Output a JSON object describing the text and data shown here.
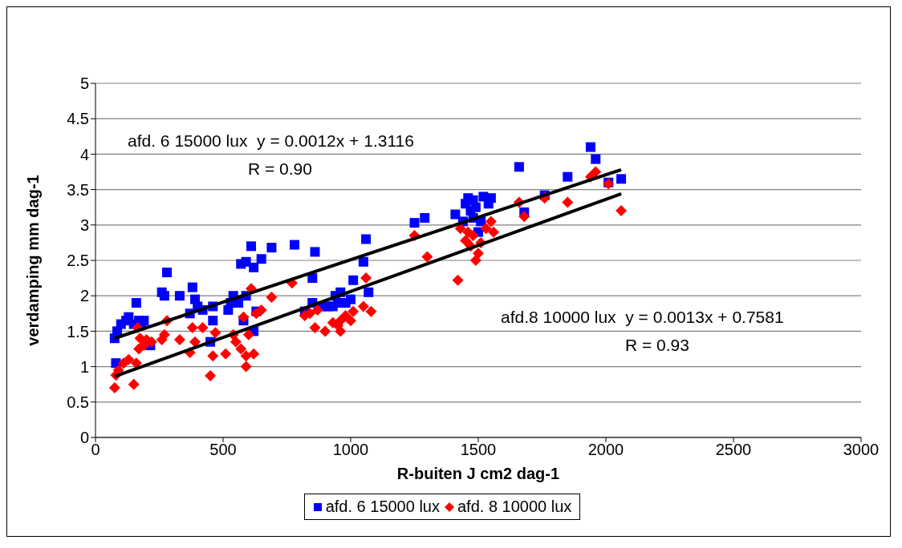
{
  "chart_data": {
    "type": "scatter",
    "xlabel": "R-buiten J cm2 dag-1",
    "ylabel": "verdamping  mm dag-1",
    "xlim": [
      0,
      3000
    ],
    "xticks": [
      0,
      500,
      1000,
      1500,
      2000,
      2500,
      3000
    ],
    "ylim": [
      0,
      5
    ],
    "yticks": [
      0,
      0.5,
      1,
      1.5,
      2,
      2.5,
      3,
      3.5,
      4,
      4.5,
      5
    ],
    "grid": "y",
    "legend": "bottom",
    "annotations": [
      "afd. 6 15000 lux  y = 0.0012x + 1.3116",
      "R = 0.90",
      "afd.8 10000 lux  y = 0.0013x + 0.7581",
      "R = 0.93"
    ],
    "series": [
      {
        "name": "afd. 6 15000 lux",
        "marker": "square",
        "color": "#0000ff",
        "x": [
          75,
          80,
          85,
          100,
          120,
          130,
          150,
          160,
          170,
          180,
          190,
          215,
          260,
          270,
          280,
          330,
          370,
          380,
          390,
          400,
          420,
          450,
          460,
          460,
          520,
          530,
          540,
          560,
          570,
          580,
          590,
          590,
          610,
          620,
          620,
          630,
          650,
          690,
          780,
          820,
          850,
          850,
          860,
          890,
          910,
          930,
          940,
          950,
          960,
          980,
          1000,
          1010,
          1050,
          1060,
          1070,
          1250,
          1290,
          1410,
          1440,
          1450,
          1460,
          1470,
          1480,
          1480,
          1490,
          1500,
          1510,
          1520,
          1540,
          1550,
          1660,
          1680,
          1760,
          1850,
          1940,
          1960,
          2010,
          2060
        ],
        "values": [
          1.4,
          1.05,
          1.5,
          1.6,
          1.65,
          1.7,
          1.6,
          1.9,
          1.65,
          1.6,
          1.65,
          1.3,
          2.05,
          2.0,
          2.33,
          2.0,
          1.75,
          2.12,
          1.95,
          1.85,
          1.8,
          1.35,
          1.65,
          1.85,
          1.8,
          1.9,
          2.0,
          1.9,
          2.45,
          1.65,
          2.48,
          2.0,
          2.7,
          2.4,
          1.5,
          1.78,
          2.52,
          2.68,
          2.72,
          1.78,
          2.25,
          1.9,
          2.62,
          1.85,
          1.85,
          1.85,
          2.0,
          1.9,
          2.05,
          1.9,
          1.95,
          2.22,
          2.48,
          2.8,
          2.05,
          3.03,
          3.1,
          3.15,
          3.05,
          3.3,
          3.38,
          3.2,
          3.35,
          3.1,
          3.25,
          2.9,
          3.05,
          3.4,
          3.3,
          3.38,
          3.82,
          3.18,
          3.42,
          3.68,
          4.1,
          3.93,
          3.6,
          3.65
        ]
      },
      {
        "name": "afd. 8 10000 lux",
        "marker": "diamond",
        "color": "#ff0000",
        "x": [
          75,
          80,
          90,
          110,
          130,
          150,
          160,
          165,
          170,
          175,
          190,
          200,
          220,
          260,
          270,
          280,
          330,
          370,
          380,
          390,
          420,
          450,
          460,
          470,
          510,
          540,
          550,
          570,
          580,
          590,
          590,
          600,
          610,
          620,
          630,
          650,
          690,
          770,
          820,
          840,
          860,
          870,
          900,
          930,
          950,
          960,
          960,
          980,
          1000,
          1010,
          1050,
          1060,
          1080,
          1250,
          1300,
          1420,
          1430,
          1450,
          1460,
          1470,
          1480,
          1490,
          1500,
          1510,
          1530,
          1550,
          1560,
          1660,
          1680,
          1760,
          1850,
          1940,
          1960,
          2010,
          2060
        ],
        "values": [
          0.7,
          0.88,
          0.95,
          1.05,
          1.1,
          0.75,
          1.05,
          1.55,
          1.25,
          1.4,
          1.3,
          1.38,
          1.35,
          1.38,
          1.45,
          1.65,
          1.38,
          1.2,
          1.55,
          1.35,
          1.55,
          0.87,
          1.15,
          1.48,
          1.18,
          1.45,
          1.35,
          1.25,
          1.7,
          1.0,
          1.15,
          1.45,
          2.1,
          1.18,
          1.75,
          1.8,
          1.98,
          2.18,
          1.72,
          1.75,
          1.55,
          1.8,
          1.5,
          1.62,
          1.58,
          1.65,
          1.5,
          1.72,
          1.65,
          1.78,
          1.85,
          2.25,
          1.78,
          2.85,
          2.55,
          2.22,
          2.95,
          2.78,
          2.9,
          2.7,
          2.85,
          2.5,
          2.6,
          2.75,
          2.95,
          3.05,
          2.9,
          3.32,
          3.12,
          3.38,
          3.32,
          3.68,
          3.75,
          3.58,
          3.2
        ]
      },
      {
        "type": "line",
        "marker": "none",
        "line_style": "solid",
        "color": "#000000",
        "x": [
          75,
          2060
        ],
        "values": [
          1.4,
          3.78
        ]
      },
      {
        "type": "line",
        "marker": "none",
        "line_style": "solid",
        "color": "#000000",
        "x": [
          75,
          2060
        ],
        "values": [
          0.86,
          3.44
        ]
      }
    ]
  }
}
